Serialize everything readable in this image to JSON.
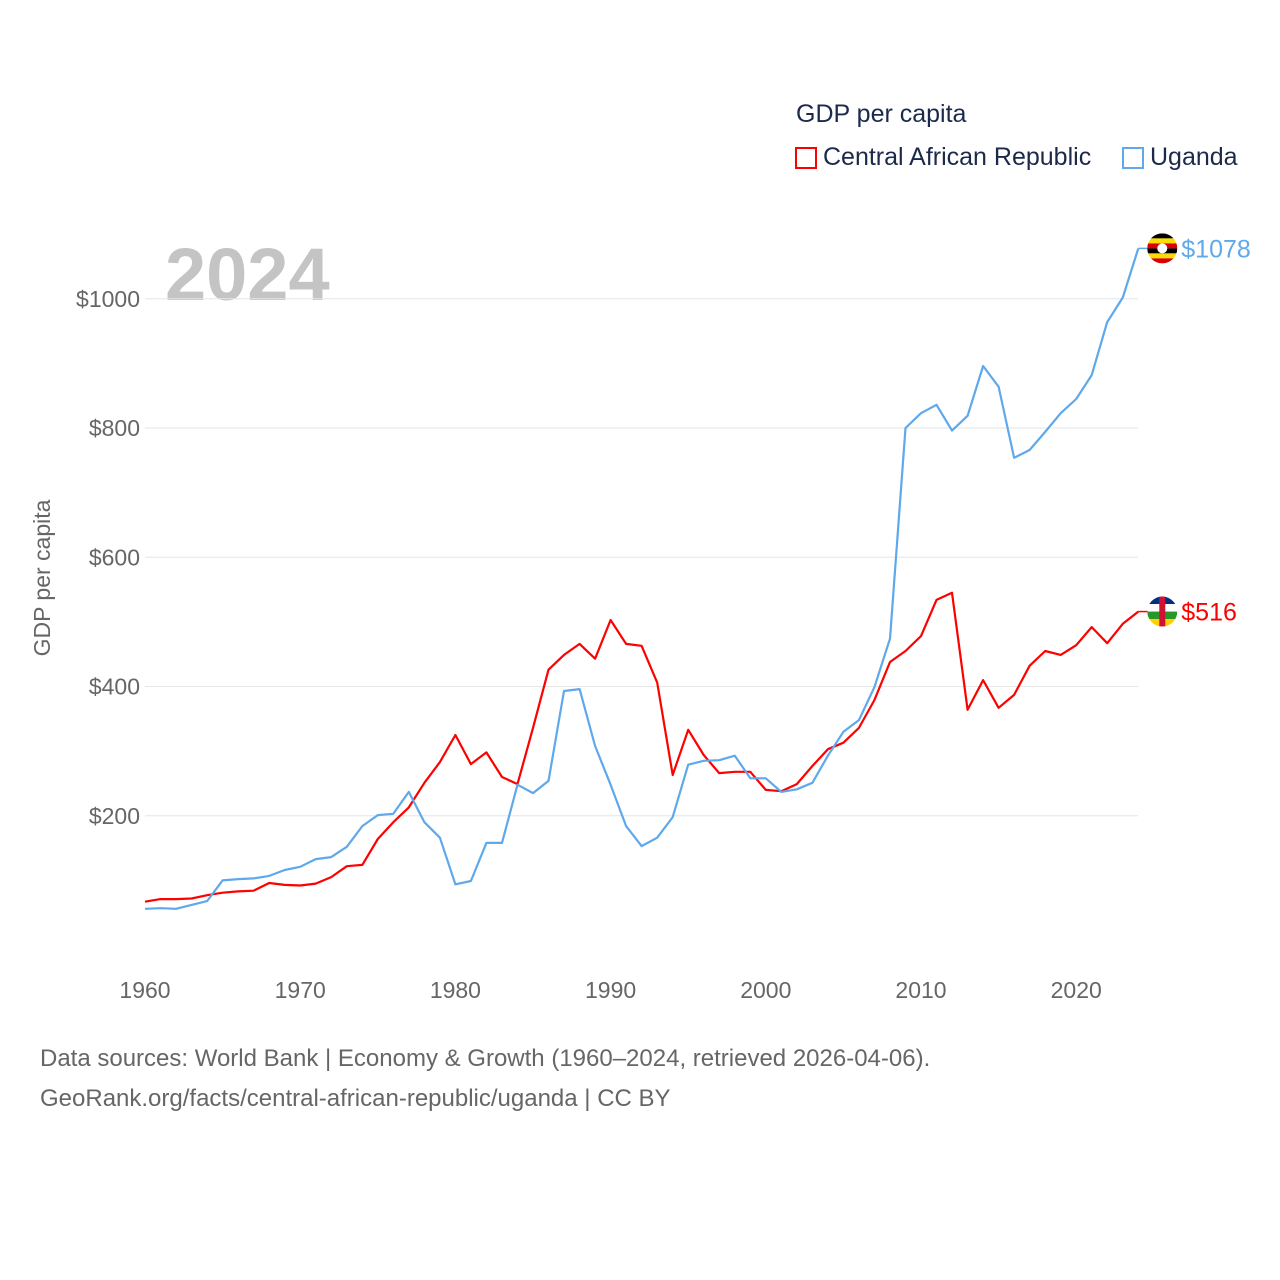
{
  "chart_data": {
    "type": "line",
    "title": "GDP per capita",
    "year_label": "2024",
    "xlabel": "",
    "ylabel": "GDP per capita",
    "xlim": [
      1960,
      2024
    ],
    "ylim": [
      0,
      1100
    ],
    "x_ticks": [
      "1960",
      "1970",
      "1980",
      "1990",
      "2000",
      "2010",
      "2020"
    ],
    "y_ticks": [
      {
        "value": 200,
        "label": "$200"
      },
      {
        "value": 400,
        "label": "$400"
      },
      {
        "value": 600,
        "label": "$600"
      },
      {
        "value": 800,
        "label": "$800"
      },
      {
        "value": 1000,
        "label": "$1000"
      }
    ],
    "grid": true,
    "legend_position": "top-right",
    "x": [
      1960,
      1961,
      1962,
      1963,
      1964,
      1965,
      1966,
      1967,
      1968,
      1969,
      1970,
      1971,
      1972,
      1973,
      1974,
      1975,
      1976,
      1977,
      1978,
      1979,
      1980,
      1981,
      1982,
      1983,
      1984,
      1985,
      1986,
      1987,
      1988,
      1989,
      1990,
      1991,
      1992,
      1993,
      1994,
      1995,
      1996,
      1997,
      1998,
      1999,
      2000,
      2001,
      2002,
      2003,
      2004,
      2005,
      2006,
      2007,
      2008,
      2009,
      2010,
      2011,
      2012,
      2013,
      2014,
      2015,
      2016,
      2017,
      2018,
      2019,
      2020,
      2021,
      2022,
      2023,
      2024
    ],
    "series": [
      {
        "name": "Central African Republic",
        "color": "#ff0000",
        "end_label": "$516",
        "values": [
          67,
          71,
          71,
          72,
          77,
          81,
          83,
          84,
          96,
          93,
          92,
          95,
          105,
          122,
          124,
          164,
          190,
          213,
          251,
          283,
          325,
          280,
          298,
          260,
          249,
          336,
          426,
          449,
          466,
          443,
          503,
          466,
          463,
          406,
          263,
          333,
          294,
          266,
          268,
          268,
          240,
          238,
          249,
          277,
          303,
          313,
          336,
          379,
          438,
          455,
          478,
          534,
          545,
          364,
          410,
          367,
          387,
          432,
          455,
          449,
          464,
          492,
          467,
          497,
          516
        ]
      },
      {
        "name": "Uganda",
        "color": "#5ea8ec",
        "end_label": "$1078",
        "values": [
          56,
          57,
          56,
          62,
          68,
          100,
          102,
          103,
          107,
          116,
          121,
          133,
          136,
          152,
          184,
          201,
          203,
          237,
          190,
          166,
          94,
          99,
          158,
          158,
          248,
          235,
          254,
          393,
          396,
          308,
          248,
          184,
          153,
          166,
          198,
          279,
          285,
          286,
          293,
          258,
          258,
          237,
          241,
          251,
          293,
          330,
          348,
          399,
          474,
          800,
          823,
          836,
          796,
          819,
          896,
          864,
          754,
          766,
          794,
          823,
          845,
          882,
          964,
          1002,
          1078
        ]
      }
    ]
  },
  "footer": {
    "line1": "Data sources: World Bank | Economy & Growth (1960–2024, retrieved 2026-04-06).",
    "line2": "GeoRank.org/facts/central-african-republic/uganda | CC BY"
  }
}
